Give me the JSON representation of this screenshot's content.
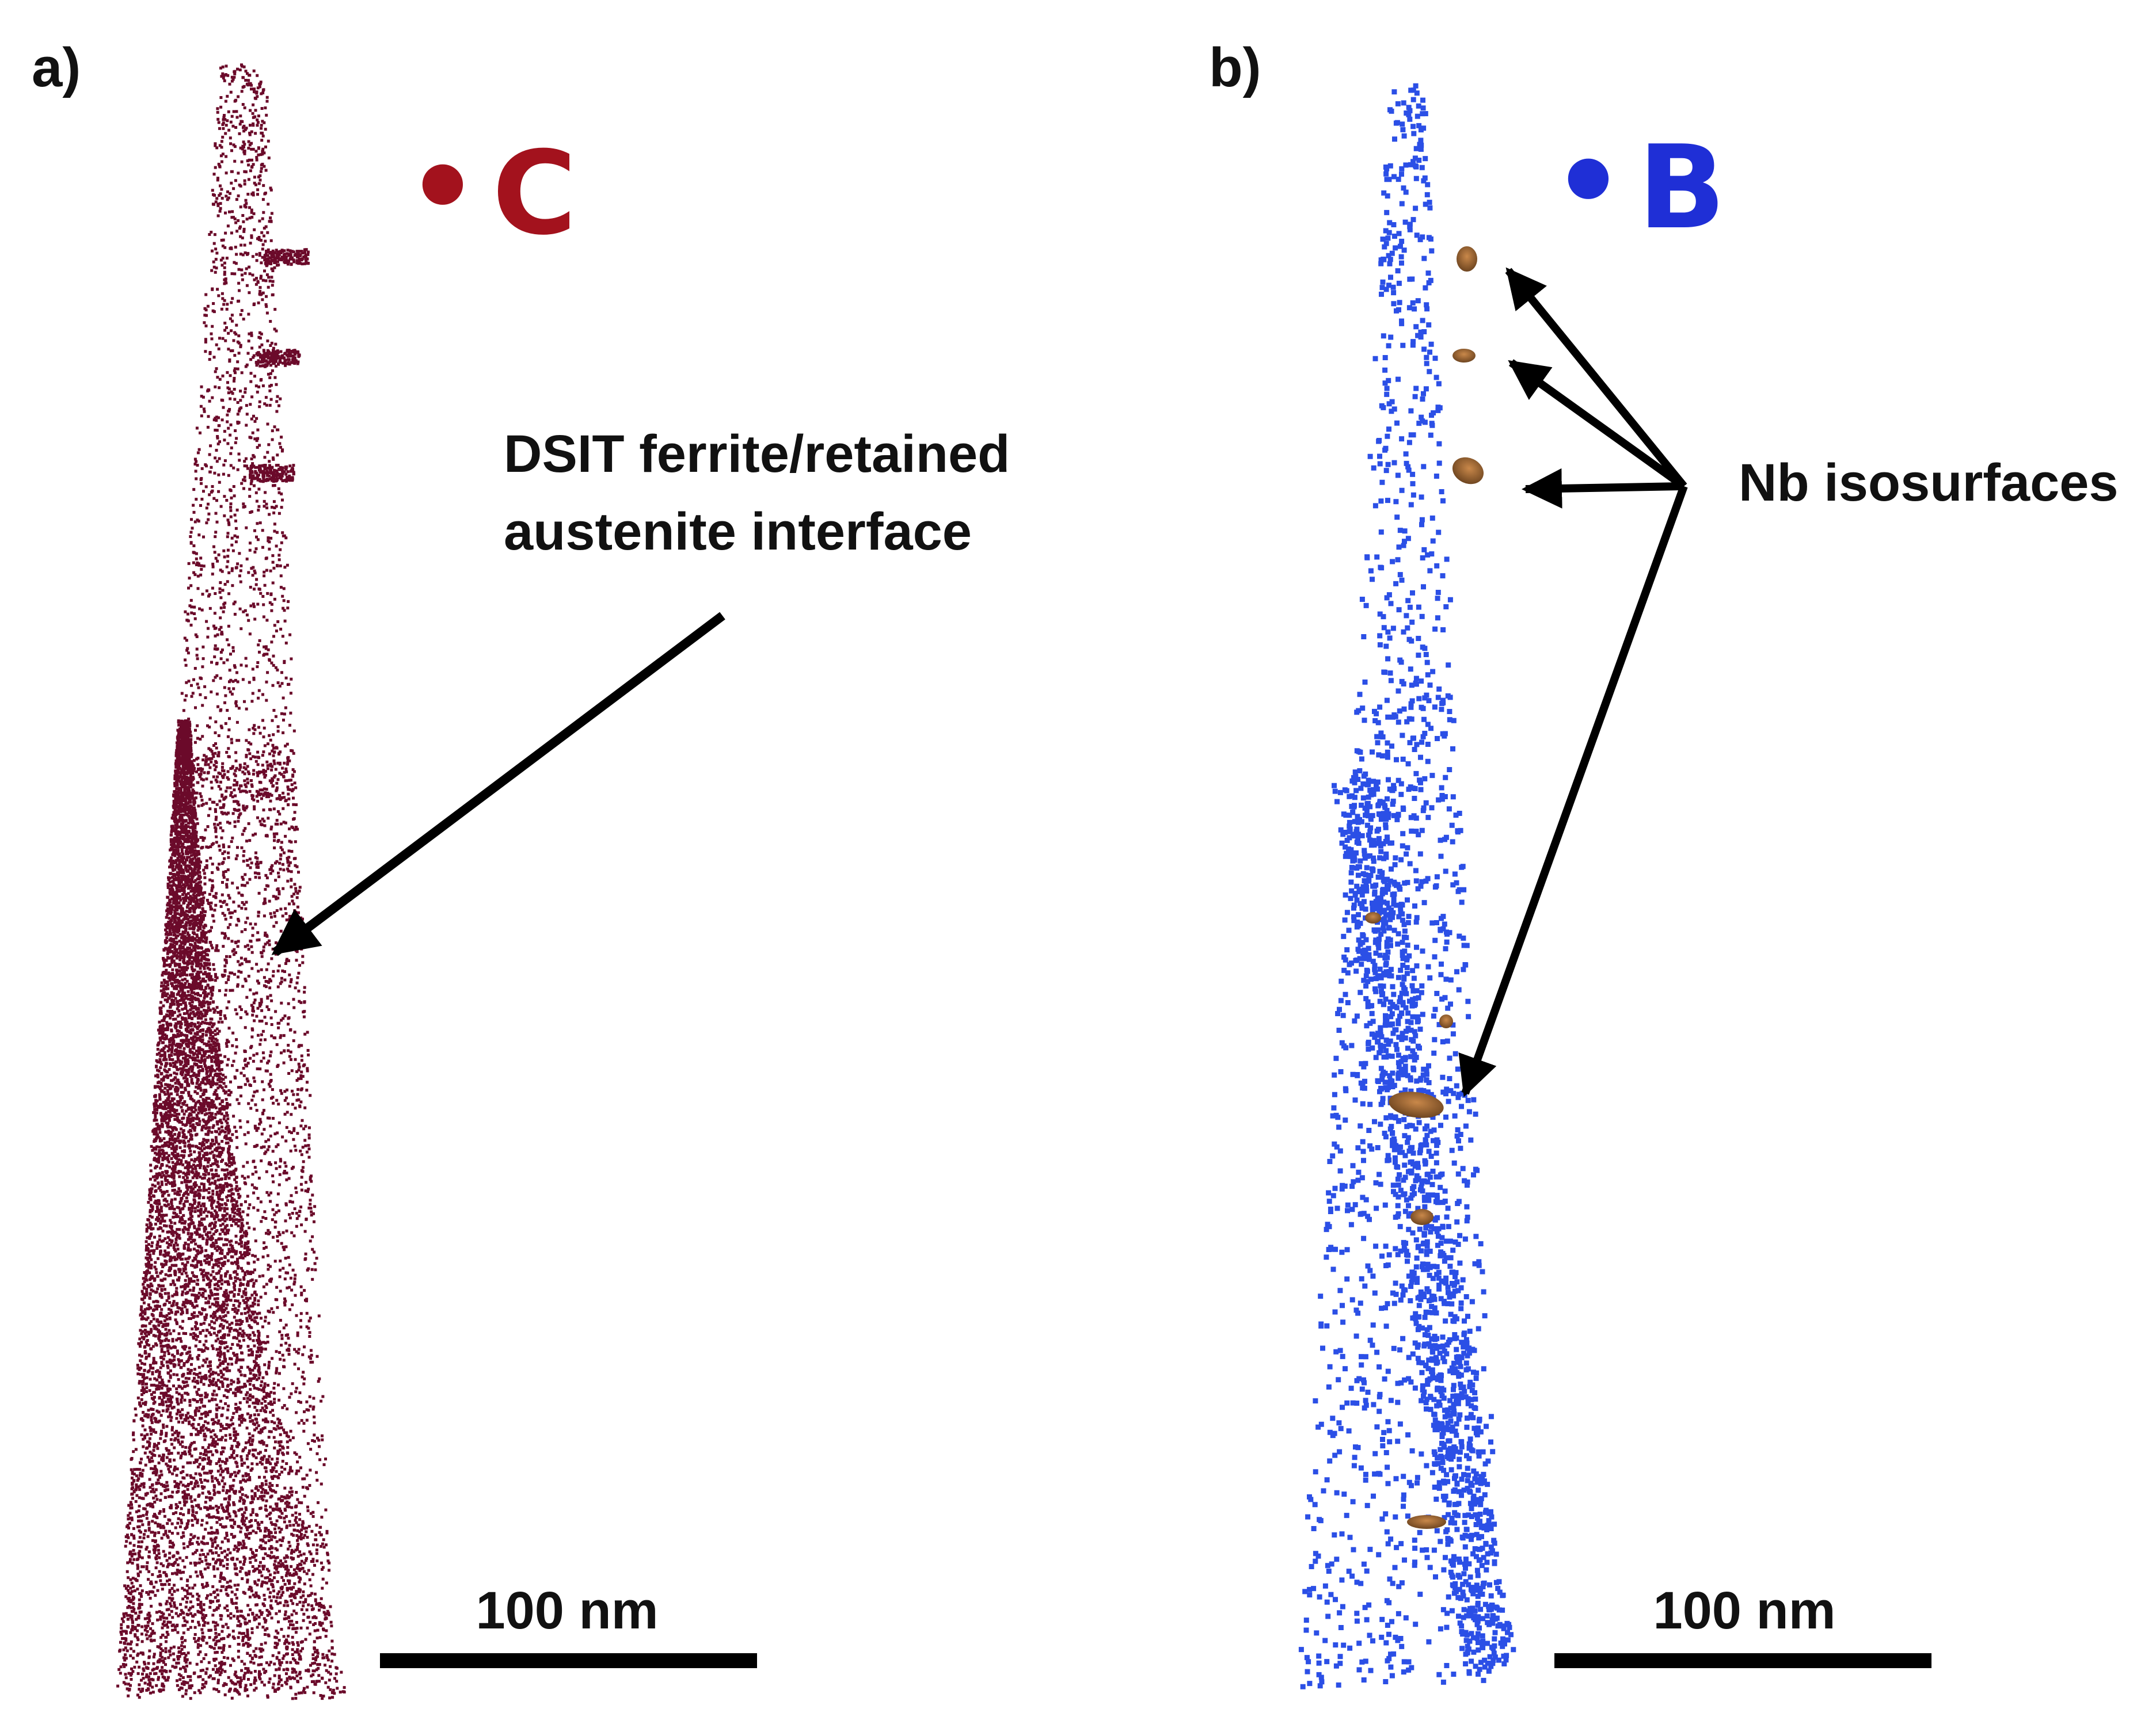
{
  "panels": [
    {
      "label": "a)",
      "legend": {
        "symbol": "•",
        "element": "C",
        "color": "#a3121d"
      },
      "annotation": [
        "DSIT ferrite/retained",
        "austenite interface"
      ],
      "scale_bar_label": "100 nm",
      "atom_color": "#6b0a2a"
    },
    {
      "label": "b)",
      "legend": {
        "symbol": "•",
        "element": "B",
        "color": "#1f2fd6"
      },
      "annotation": [
        "Nb isosurfaces"
      ],
      "scale_bar_label": "100 nm",
      "atom_color": "#2b4fe6",
      "isosurface_color": "#8a5a2b"
    }
  ]
}
